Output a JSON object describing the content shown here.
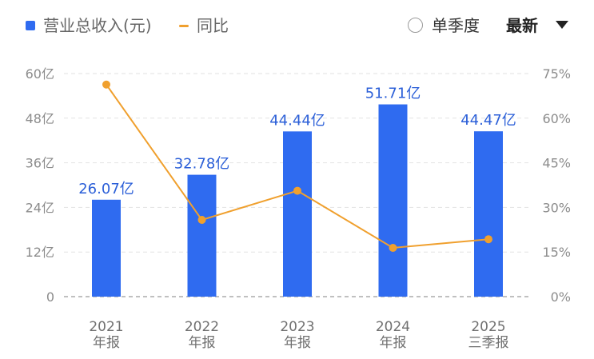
{
  "legend": {
    "bar_label": "营业总收入(元)",
    "line_label": "同比"
  },
  "controls": {
    "season_toggle_label": "单季度",
    "sort_label": "最新",
    "sort_caret_icon": "caret-down-icon",
    "radio_icon": "radio-unchecked-icon"
  },
  "colors": {
    "bar": "#2f6bf0",
    "line": "#f0a02e",
    "data_label": "#2b5fd8"
  },
  "chart_data": {
    "type": "bar",
    "categories": [
      [
        "2021",
        "年报"
      ],
      [
        "2022",
        "年报"
      ],
      [
        "2023",
        "年报"
      ],
      [
        "2024",
        "年报"
      ],
      [
        "2025",
        "三季报"
      ]
    ],
    "series": [
      {
        "name": "营业总收入(元)",
        "type": "bar",
        "axis": "left",
        "values": [
          26.07,
          32.78,
          44.44,
          51.71,
          44.47
        ],
        "labels": [
          "26.07亿",
          "32.78亿",
          "44.44亿",
          "51.71亿",
          "44.47亿"
        ]
      },
      {
        "name": "同比",
        "type": "line",
        "axis": "right",
        "values": [
          71.3,
          25.8,
          35.6,
          16.4,
          19.3
        ]
      }
    ],
    "left_axis": {
      "ylim": [
        0,
        60
      ],
      "ticks": [
        0,
        12,
        24,
        36,
        48,
        60
      ],
      "tick_labels": [
        "0",
        "12亿",
        "24亿",
        "36亿",
        "48亿",
        "60亿"
      ]
    },
    "right_axis": {
      "ylim": [
        0,
        75
      ],
      "ticks": [
        0,
        15,
        30,
        45,
        60,
        75
      ],
      "tick_labels": [
        "0%",
        "15%",
        "30%",
        "45%",
        "60%",
        "75%"
      ]
    },
    "grid": true
  }
}
